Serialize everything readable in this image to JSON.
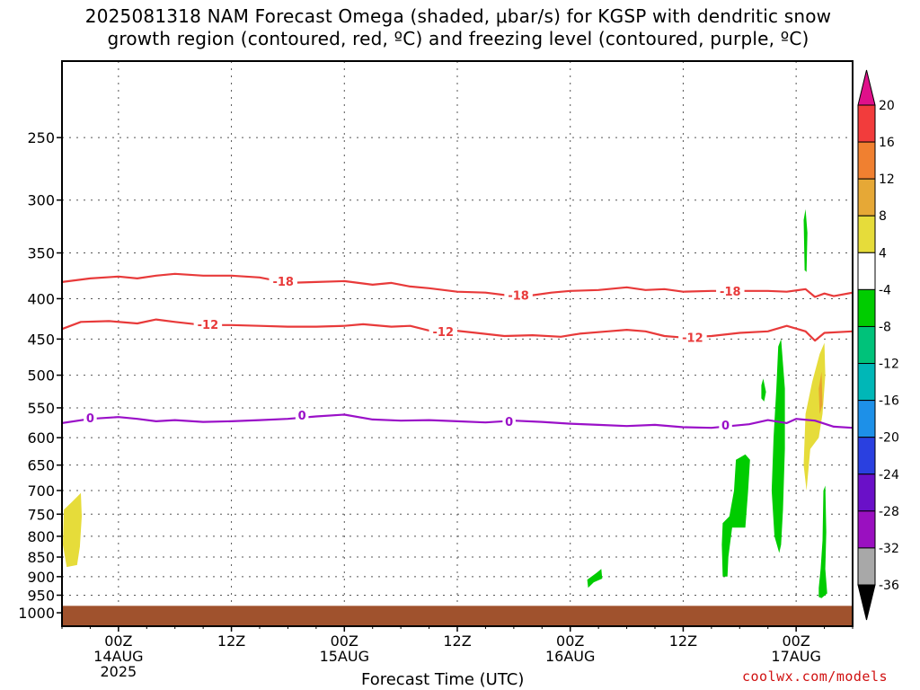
{
  "chart_data": {
    "type": "heatmap",
    "title_lines": [
      "2025081318 NAM Forecast Omega (shaded, μbar/s) for KGSP with dendritic snow",
      "growth region (contoured, red, ºC) and freezing level (contoured, purple, ºC)"
    ],
    "xlabel": "Forecast Time (UTC)",
    "x_ticks": [
      {
        "hour": 6,
        "label": "00Z",
        "sub": [
          "14AUG",
          "2025"
        ]
      },
      {
        "hour": 18,
        "label": "12Z",
        "sub": []
      },
      {
        "hour": 30,
        "label": "00Z",
        "sub": [
          "15AUG"
        ]
      },
      {
        "hour": 42,
        "label": "12Z",
        "sub": []
      },
      {
        "hour": 54,
        "label": "00Z",
        "sub": [
          "16AUG"
        ]
      },
      {
        "hour": 66,
        "label": "12Z",
        "sub": []
      },
      {
        "hour": 78,
        "label": "00Z",
        "sub": [
          "17AUG"
        ]
      }
    ],
    "xlim": [
      0,
      84
    ],
    "y_ticks": [
      250,
      300,
      350,
      400,
      450,
      500,
      550,
      600,
      650,
      700,
      750,
      800,
      850,
      900,
      950,
      1000
    ],
    "ylim": [
      200,
      1040
    ],
    "y_scale": "log-pressure",
    "grid": true,
    "ground_pressure": 980,
    "contours": [
      {
        "name": "-18",
        "color": "#e83a3a",
        "label": "-18",
        "points": [
          [
            0,
            381
          ],
          [
            3,
            377
          ],
          [
            6,
            375
          ],
          [
            8,
            377
          ],
          [
            10,
            374
          ],
          [
            12,
            372
          ],
          [
            15,
            374
          ],
          [
            18,
            374
          ],
          [
            21,
            376
          ],
          [
            24,
            382
          ],
          [
            27,
            381
          ],
          [
            30,
            380
          ],
          [
            33,
            384
          ],
          [
            35,
            382
          ],
          [
            37,
            386
          ],
          [
            39,
            388
          ],
          [
            42,
            392
          ],
          [
            45,
            393
          ],
          [
            48,
            397
          ],
          [
            50,
            396
          ],
          [
            52,
            393
          ],
          [
            54,
            391
          ],
          [
            57,
            390
          ],
          [
            60,
            387
          ],
          [
            62,
            390
          ],
          [
            64,
            389
          ],
          [
            66,
            392
          ],
          [
            69,
            391
          ],
          [
            72,
            391
          ],
          [
            75,
            391
          ],
          [
            77,
            392
          ],
          [
            79,
            389
          ],
          [
            80,
            398
          ],
          [
            81,
            394
          ],
          [
            82,
            397
          ],
          [
            84,
            393
          ]
        ],
        "label_positions": [
          [
            23.5,
            380
          ],
          [
            48.5,
            396
          ],
          [
            71,
            391
          ]
        ]
      },
      {
        "name": "-12",
        "color": "#e83a3a",
        "label": "-12",
        "points": [
          [
            0,
            437
          ],
          [
            2,
            428
          ],
          [
            5,
            427
          ],
          [
            8,
            430
          ],
          [
            10,
            425
          ],
          [
            12,
            428
          ],
          [
            15,
            432
          ],
          [
            18,
            432
          ],
          [
            21,
            433
          ],
          [
            24,
            434
          ],
          [
            27,
            434
          ],
          [
            30,
            433
          ],
          [
            32,
            431
          ],
          [
            35,
            434
          ],
          [
            37,
            433
          ],
          [
            39,
            439
          ],
          [
            41,
            438
          ],
          [
            44,
            442
          ],
          [
            47,
            446
          ],
          [
            50,
            445
          ],
          [
            53,
            447
          ],
          [
            55,
            443
          ],
          [
            58,
            440
          ],
          [
            60,
            438
          ],
          [
            62,
            440
          ],
          [
            64,
            446
          ],
          [
            66,
            448
          ],
          [
            69,
            446
          ],
          [
            72,
            442
          ],
          [
            75,
            440
          ],
          [
            77,
            433
          ],
          [
            79,
            440
          ],
          [
            80,
            452
          ],
          [
            81,
            442
          ],
          [
            84,
            440
          ]
        ],
        "label_positions": [
          [
            15.5,
            431
          ],
          [
            40.5,
            440
          ],
          [
            67,
            448
          ]
        ]
      },
      {
        "name": "0",
        "color": "#9a10c8",
        "label": "0",
        "points": [
          [
            0,
            575
          ],
          [
            3,
            568
          ],
          [
            6,
            565
          ],
          [
            8,
            568
          ],
          [
            10,
            572
          ],
          [
            12,
            570
          ],
          [
            15,
            573
          ],
          [
            18,
            572
          ],
          [
            21,
            570
          ],
          [
            24,
            568
          ],
          [
            27,
            564
          ],
          [
            30,
            561
          ],
          [
            33,
            569
          ],
          [
            36,
            571
          ],
          [
            39,
            570
          ],
          [
            42,
            572
          ],
          [
            45,
            574
          ],
          [
            48,
            571
          ],
          [
            51,
            573
          ],
          [
            54,
            576
          ],
          [
            57,
            578
          ],
          [
            60,
            580
          ],
          [
            63,
            578
          ],
          [
            66,
            582
          ],
          [
            69,
            583
          ],
          [
            71,
            580
          ],
          [
            73,
            577
          ],
          [
            75,
            570
          ],
          [
            77,
            575
          ],
          [
            78,
            568
          ],
          [
            80,
            571
          ],
          [
            82,
            581
          ],
          [
            84,
            583
          ]
        ],
        "label_positions": [
          [
            3,
            566
          ],
          [
            25.5,
            562
          ],
          [
            47.5,
            572
          ],
          [
            70.5,
            578
          ]
        ]
      }
    ],
    "omega_regions": [
      {
        "color": "#e6dc3a",
        "value_range": [
          4,
          8
        ],
        "points": [
          [
            0.2,
            740
          ],
          [
            1,
            725
          ],
          [
            2,
            705
          ],
          [
            2.1,
            755
          ],
          [
            1.9,
            825
          ],
          [
            1.6,
            870
          ],
          [
            0.5,
            875
          ],
          [
            0.1,
            820
          ]
        ]
      },
      {
        "color": "#00cc00",
        "value_range": [
          -8,
          -4
        ],
        "points": [
          [
            55.8,
            908
          ],
          [
            56.8,
            890
          ],
          [
            57.3,
            880
          ],
          [
            57.4,
            905
          ],
          [
            56.5,
            915
          ],
          [
            55.9,
            930
          ]
        ]
      },
      {
        "color": "#00cc00",
        "value_range": [
          -8,
          -4
        ],
        "points": [
          [
            70.2,
            770
          ],
          [
            70.9,
            755
          ],
          [
            71.4,
            700
          ],
          [
            71.6,
            640
          ],
          [
            72.6,
            630
          ],
          [
            73.1,
            640
          ],
          [
            72.9,
            700
          ],
          [
            72.6,
            780
          ],
          [
            71.2,
            780
          ],
          [
            70.8,
            850
          ],
          [
            70.7,
            900
          ],
          [
            70.2,
            900
          ],
          [
            70.1,
            820
          ]
        ]
      },
      {
        "color": "#00cc00",
        "value_range": [
          -8,
          -4
        ],
        "points": [
          [
            74.3,
            515
          ],
          [
            74.5,
            505
          ],
          [
            74.8,
            525
          ],
          [
            74.6,
            540
          ],
          [
            74.3,
            535
          ]
        ]
      },
      {
        "color": "#00cc00",
        "value_range": [
          -8,
          -4
        ],
        "points": [
          [
            75.6,
            600
          ],
          [
            75.9,
            520
          ],
          [
            76.1,
            460
          ],
          [
            76.4,
            450
          ],
          [
            76.8,
            520
          ],
          [
            76.8,
            620
          ],
          [
            76.6,
            740
          ],
          [
            76.4,
            820
          ],
          [
            76.2,
            840
          ],
          [
            75.7,
            800
          ],
          [
            75.4,
            700
          ]
        ]
      },
      {
        "color": "#00cc00",
        "value_range": [
          -8,
          -4
        ],
        "points": [
          [
            78.8,
            318
          ],
          [
            79.0,
            308
          ],
          [
            79.2,
            330
          ],
          [
            79.1,
            370
          ],
          [
            78.9,
            368
          ]
        ]
      },
      {
        "color": "#e6dc3a",
        "value_range": [
          4,
          8
        ],
        "points": [
          [
            79.0,
            560
          ],
          [
            79.7,
            510
          ],
          [
            80.5,
            470
          ],
          [
            81.0,
            455
          ],
          [
            81.1,
            500
          ],
          [
            80.8,
            560
          ],
          [
            80.4,
            600
          ],
          [
            79.5,
            620
          ],
          [
            79.1,
            700
          ],
          [
            78.8,
            650
          ]
        ]
      },
      {
        "color": "#e8a22e",
        "value_range": [
          8,
          12
        ],
        "points": [
          [
            80.4,
            520
          ],
          [
            80.7,
            495
          ],
          [
            80.8,
            545
          ],
          [
            80.5,
            560
          ]
        ]
      },
      {
        "color": "#00cc00",
        "value_range": [
          -8,
          -4
        ],
        "points": [
          [
            80.4,
            930
          ],
          [
            80.6,
            880
          ],
          [
            80.8,
            810
          ],
          [
            80.9,
            700
          ],
          [
            81.1,
            690
          ],
          [
            81.2,
            790
          ],
          [
            81.1,
            880
          ],
          [
            81.3,
            945
          ],
          [
            80.7,
            958
          ],
          [
            80.4,
            955
          ]
        ]
      }
    ],
    "colorbar": {
      "label_values": [
        "20",
        "16",
        "12",
        "8",
        "4",
        "-4",
        "-8",
        "-12",
        "-16",
        "-20",
        "-24",
        "-28",
        "-32",
        "-36"
      ],
      "colors": [
        "#f23c3c",
        "#f08030",
        "#e6a836",
        "#e6dc3a",
        "#ffffff",
        "#00cc00",
        "#00c27a",
        "#00b7b7",
        "#1d90e8",
        "#2a40e0",
        "#6a10c8",
        "#9a10c0",
        "#a8a8a8"
      ],
      "top_color": "#e0108a",
      "bottom_color": "#000000"
    }
  },
  "credit": "coolwx.com/models"
}
